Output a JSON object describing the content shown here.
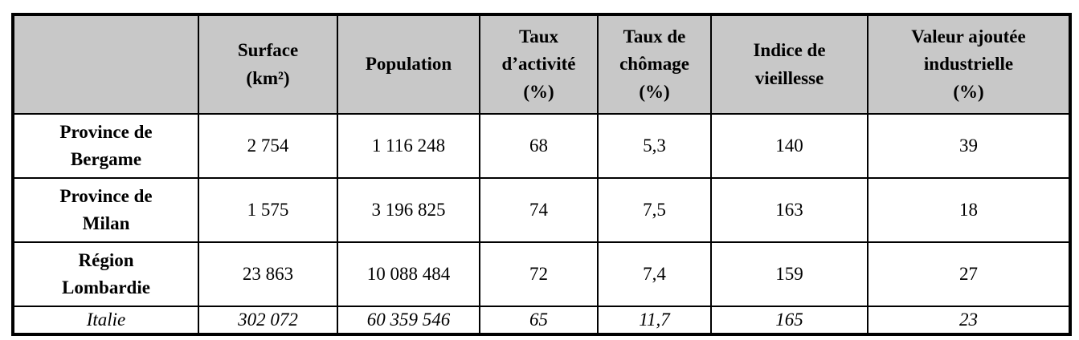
{
  "table": {
    "headers": [
      "",
      "Surface\n(km²)",
      "Population",
      "Taux\nd’activité\n(%)",
      "Taux de\nchômage\n(%)",
      "Indice de\nvieillesse",
      "Valeur ajoutée\nindustrielle\n(%)"
    ],
    "rows": [
      {
        "label": "Province de\nBergame",
        "cells": [
          "2 754",
          "1 116 248",
          "68",
          "5,3",
          "140",
          "39"
        ]
      },
      {
        "label": "Province de\nMilan",
        "cells": [
          "1 575",
          "3 196 825",
          "74",
          "7,5",
          "163",
          "18"
        ]
      },
      {
        "label": "Région\nLombardie",
        "cells": [
          "23 863",
          "10 088 484",
          "72",
          "7,4",
          "159",
          "27"
        ]
      },
      {
        "label": "Italie",
        "cells": [
          "302 072",
          "60 359 546",
          "65",
          "11,7",
          "165",
          "23"
        ]
      }
    ],
    "colors": {
      "header_background": "#c8c8c8",
      "border": "#000000",
      "text": "#000000"
    }
  }
}
